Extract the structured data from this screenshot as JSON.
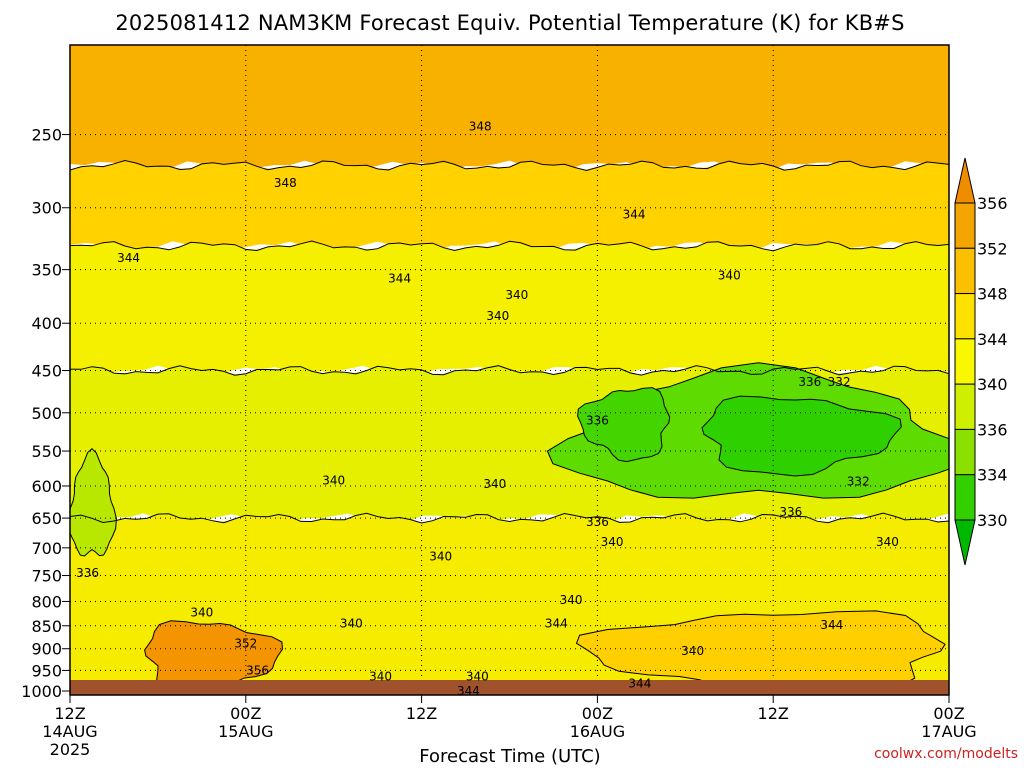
{
  "chart_data": {
    "type": "heatmap",
    "title": "2025081412 NAM3KM Forecast Equiv. Potential Temperature (K) for KB#S",
    "xlabel": "Forecast Time (UTC)",
    "ylabel": "",
    "credit": "coolwx.com/modelts",
    "x_ticks": [
      {
        "hour": 0,
        "label1": "12Z",
        "label2": "14AUG",
        "label3": "2025"
      },
      {
        "hour": 12,
        "label1": "00Z",
        "label2": "15AUG",
        "label3": ""
      },
      {
        "hour": 24,
        "label1": "12Z",
        "label2": "",
        "label3": ""
      },
      {
        "hour": 36,
        "label1": "00Z",
        "label2": "16AUG",
        "label3": ""
      },
      {
        "hour": 48,
        "label1": "12Z",
        "label2": "",
        "label3": ""
      },
      {
        "hour": 60,
        "label1": "00Z",
        "label2": "17AUG",
        "label3": ""
      }
    ],
    "xlim": [
      0,
      60
    ],
    "y_scale": "log-pressure",
    "y_ticks": [
      250,
      300,
      350,
      400,
      450,
      500,
      550,
      600,
      650,
      700,
      750,
      800,
      850,
      900,
      950,
      1000
    ],
    "ylim_hpa": [
      200,
      1010
    ],
    "colorbar": {
      "ticks": [
        356,
        352,
        348,
        344,
        340,
        336,
        334,
        330
      ],
      "colors": [
        "#f08c00",
        "#f5a500",
        "#fbc000",
        "#ffe100",
        "#f8f800",
        "#cfef00",
        "#8ce000",
        "#33d000",
        "#00b800"
      ]
    },
    "levels": [
      {
        "p_top": 200,
        "p_bottom": 270,
        "theta": 349,
        "color": "#f9b100"
      },
      {
        "p_top": 270,
        "p_bottom": 330,
        "theta": 346,
        "color": "#ffd200"
      },
      {
        "p_top": 330,
        "p_bottom": 450,
        "theta": 342,
        "color": "#f4f000"
      },
      {
        "p_top": 450,
        "p_bottom": 650,
        "theta": 340,
        "color": "#e6ef00"
      },
      {
        "p_top": 650,
        "p_bottom": 1010,
        "theta": 341,
        "color": "#f6ec00"
      }
    ],
    "moist_pockets": [
      {
        "hour_start": 34,
        "hour_end": 60,
        "p_top": 455,
        "p_bottom": 625,
        "theta": 333,
        "color": "#5edb00"
      },
      {
        "hour_start": 43,
        "hour_end": 56,
        "p_top": 480,
        "p_bottom": 580,
        "theta": 331,
        "color": "#2fd000"
      },
      {
        "hour_start": 35,
        "hour_end": 41,
        "p_top": 470,
        "p_bottom": 560,
        "theta": 332,
        "color": "#44d400"
      },
      {
        "hour_start": 0,
        "hour_end": 3,
        "p_top": 560,
        "p_bottom": 720,
        "theta": 337,
        "color": "#b9e800"
      }
    ],
    "warm_pockets": [
      {
        "hour_start": 5,
        "hour_end": 14,
        "p_top": 840,
        "p_bottom": 1000,
        "theta": 354,
        "color": "#f39400"
      },
      {
        "hour_start": 36,
        "hour_end": 60,
        "p_top": 820,
        "p_bottom": 1000,
        "theta": 345,
        "color": "#ffcf00"
      }
    ],
    "contour_labels": [
      {
        "text": "348",
        "hour": 28,
        "p": 245
      },
      {
        "hour": 14.7,
        "p": 282,
        "text": "348"
      },
      {
        "hour": 4,
        "p": 340,
        "text": "344"
      },
      {
        "hour": 22.5,
        "p": 358,
        "text": "344"
      },
      {
        "hour": 38.5,
        "p": 305,
        "text": "344"
      },
      {
        "hour": 30.5,
        "p": 373,
        "text": "340"
      },
      {
        "hour": 29.2,
        "p": 393,
        "text": "340"
      },
      {
        "hour": 45,
        "p": 355,
        "text": "340"
      },
      {
        "hour": 50.5,
        "p": 463,
        "text": "336"
      },
      {
        "hour": 52.5,
        "p": 463,
        "text": "332"
      },
      {
        "hour": 36,
        "p": 510,
        "text": "336"
      },
      {
        "hour": 18,
        "p": 592,
        "text": "340"
      },
      {
        "hour": 29,
        "p": 597,
        "text": "340"
      },
      {
        "hour": 53.8,
        "p": 593,
        "text": "332"
      },
      {
        "hour": 36,
        "p": 656,
        "text": "336"
      },
      {
        "hour": 49.2,
        "p": 640,
        "text": "336"
      },
      {
        "hour": 37,
        "p": 690,
        "text": "340"
      },
      {
        "hour": 55.8,
        "p": 690,
        "text": "340"
      },
      {
        "hour": 25.3,
        "p": 715,
        "text": "340"
      },
      {
        "hour": 1.2,
        "p": 745,
        "text": "336"
      },
      {
        "hour": 34.2,
        "p": 797,
        "text": "340"
      },
      {
        "hour": 9,
        "p": 822,
        "text": "340"
      },
      {
        "hour": 19.2,
        "p": 845,
        "text": "340"
      },
      {
        "hour": 33.2,
        "p": 845,
        "text": "344"
      },
      {
        "hour": 52,
        "p": 848,
        "text": "344"
      },
      {
        "hour": 12,
        "p": 888,
        "text": "352"
      },
      {
        "hour": 42.5,
        "p": 905,
        "text": "340"
      },
      {
        "hour": 12.8,
        "p": 950,
        "text": "356"
      },
      {
        "hour": 21.2,
        "p": 965,
        "text": "340"
      },
      {
        "hour": 27.8,
        "p": 965,
        "text": "340"
      },
      {
        "hour": 38.9,
        "p": 982,
        "text": "344"
      },
      {
        "hour": 27.2,
        "p": 1000,
        "text": "344"
      }
    ]
  }
}
